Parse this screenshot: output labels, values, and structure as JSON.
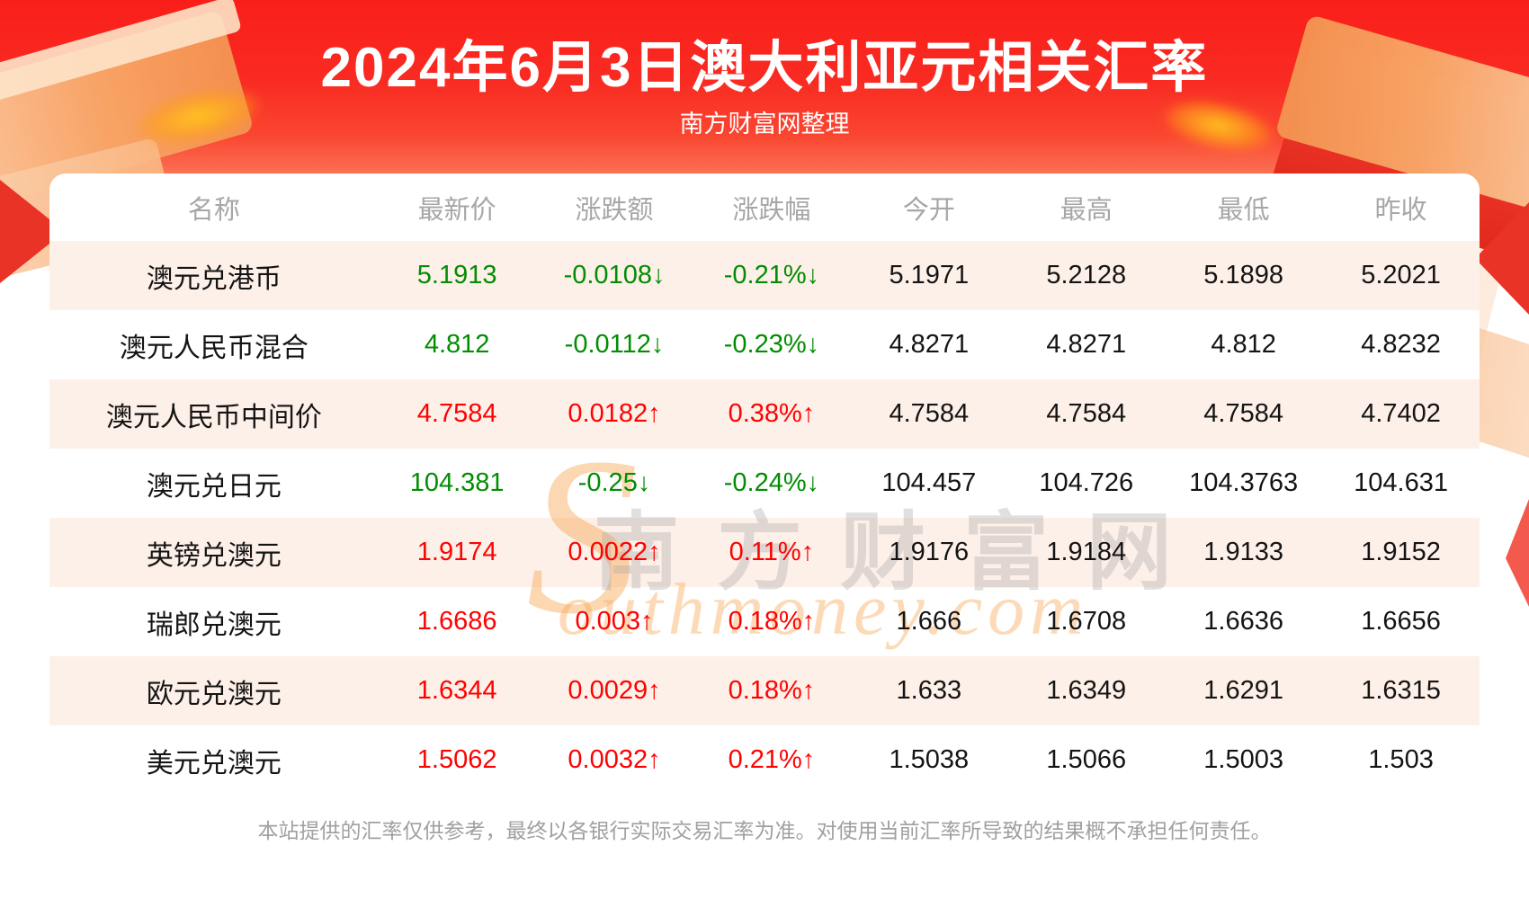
{
  "header": {
    "title": "2024年6月3日澳大利亚元相关汇率",
    "subtitle": "南方财富网整理"
  },
  "table": {
    "columns": [
      "名称",
      "最新价",
      "涨跌额",
      "涨跌幅",
      "今开",
      "最高",
      "最低",
      "昨收"
    ],
    "rows": [
      {
        "name": "澳元兑港币",
        "latest": "5.1913",
        "change": "-0.0108↓",
        "pct": "-0.21%↓",
        "open": "5.1971",
        "high": "5.2128",
        "low": "5.1898",
        "prev": "5.2021",
        "trend": "down"
      },
      {
        "name": "澳元人民币混合",
        "latest": "4.812",
        "change": "-0.0112↓",
        "pct": "-0.23%↓",
        "open": "4.8271",
        "high": "4.8271",
        "low": "4.812",
        "prev": "4.8232",
        "trend": "down"
      },
      {
        "name": "澳元人民币中间价",
        "latest": "4.7584",
        "change": "0.0182↑",
        "pct": "0.38%↑",
        "open": "4.7584",
        "high": "4.7584",
        "low": "4.7584",
        "prev": "4.7402",
        "trend": "up"
      },
      {
        "name": "澳元兑日元",
        "latest": "104.381",
        "change": "-0.25↓",
        "pct": "-0.24%↓",
        "open": "104.457",
        "high": "104.726",
        "low": "104.3763",
        "prev": "104.631",
        "trend": "down"
      },
      {
        "name": "英镑兑澳元",
        "latest": "1.9174",
        "change": "0.0022↑",
        "pct": "0.11%↑",
        "open": "1.9176",
        "high": "1.9184",
        "low": "1.9133",
        "prev": "1.9152",
        "trend": "up"
      },
      {
        "name": "瑞郎兑澳元",
        "latest": "1.6686",
        "change": "0.003↑",
        "pct": "0.18%↑",
        "open": "1.666",
        "high": "1.6708",
        "low": "1.6636",
        "prev": "1.6656",
        "trend": "up"
      },
      {
        "name": "欧元兑澳元",
        "latest": "1.6344",
        "change": "0.0029↑",
        "pct": "0.18%↑",
        "open": "1.633",
        "high": "1.6349",
        "low": "1.6291",
        "prev": "1.6315",
        "trend": "up"
      },
      {
        "name": "美元兑澳元",
        "latest": "1.5062",
        "change": "0.0032↑",
        "pct": "0.21%↑",
        "open": "1.5038",
        "high": "1.5066",
        "low": "1.5003",
        "prev": "1.503",
        "trend": "up"
      }
    ]
  },
  "watermark": {
    "initial": "S",
    "cn": "南方财富网",
    "en": "outhmoney.com"
  },
  "footer": {
    "disclaimer": "本站提供的汇率仅供参考，最终以各银行实际交易汇率为准。对使用当前汇率所导致的结果概不承担任何责任。"
  },
  "colors": {
    "up_red": "#fe0202",
    "down_green": "#028d02",
    "banner_red": "#f91e19",
    "alt_row": "#fdf0e8",
    "header_gray": "#a7a7a7"
  },
  "chart_data": {
    "type": "table",
    "title": "2024年6月3日澳大利亚元相关汇率",
    "subtitle": "南方财富网整理",
    "columns": [
      "名称",
      "最新价",
      "涨跌额",
      "涨跌幅",
      "今开",
      "最高",
      "最低",
      "昨收"
    ],
    "rows": [
      [
        "澳元兑港币",
        5.1913,
        "-0.0108↓",
        "-0.21%↓",
        5.1971,
        5.2128,
        5.1898,
        5.2021
      ],
      [
        "澳元人民币混合",
        4.812,
        "-0.0112↓",
        "-0.23%↓",
        4.8271,
        4.8271,
        4.812,
        4.8232
      ],
      [
        "澳元人民币中间价",
        4.7584,
        "0.0182↑",
        "0.38%↑",
        4.7584,
        4.7584,
        4.7584,
        4.7402
      ],
      [
        "澳元兑日元",
        104.381,
        "-0.25↓",
        "-0.24%↓",
        104.457,
        104.726,
        104.3763,
        104.631
      ],
      [
        "英镑兑澳元",
        1.9174,
        "0.0022↑",
        "0.11%↑",
        1.9176,
        1.9184,
        1.9133,
        1.9152
      ],
      [
        "瑞郎兑澳元",
        1.6686,
        "0.003↑",
        "0.18%↑",
        1.666,
        1.6708,
        1.6636,
        1.6656
      ],
      [
        "欧元兑澳元",
        1.6344,
        "0.0029↑",
        "0.18%↑",
        1.633,
        1.6349,
        1.6291,
        1.6315
      ],
      [
        "美元兑澳元",
        1.5062,
        "0.0032↑",
        "0.21%↑",
        1.5038,
        1.5066,
        1.5003,
        1.503
      ]
    ],
    "notes": "红色=上涨(↑)，绿色=下跌(↓)；legend none; grid off"
  }
}
